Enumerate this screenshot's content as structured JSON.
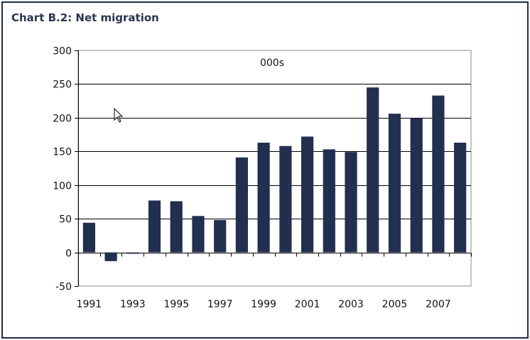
{
  "title": "Chart B.2: Net migration",
  "chart_data": {
    "type": "bar",
    "title": "Chart B.2: Net migration",
    "unit_label": "000s",
    "xlabel": "",
    "ylabel": "",
    "categories": [
      "1991",
      "1992",
      "1993",
      "1994",
      "1995",
      "1996",
      "1997",
      "1998",
      "1999",
      "2000",
      "2001",
      "2002",
      "2003",
      "2004",
      "2005",
      "2006",
      "2007",
      "2008"
    ],
    "x_tick_labels": [
      "1991",
      "1993",
      "1995",
      "1997",
      "1999",
      "2001",
      "2003",
      "2005",
      "2007"
    ],
    "values": [
      44,
      -13,
      -2,
      77,
      76,
      54,
      48,
      141,
      163,
      158,
      172,
      153,
      149,
      245,
      206,
      199,
      233,
      163
    ],
    "ylim": [
      -50,
      300
    ],
    "yticks": [
      -50,
      0,
      50,
      100,
      150,
      200,
      250,
      300
    ],
    "grid": true,
    "bar_color": "#232f4f"
  },
  "icons": {
    "cursor": "mouse-pointer-icon"
  }
}
